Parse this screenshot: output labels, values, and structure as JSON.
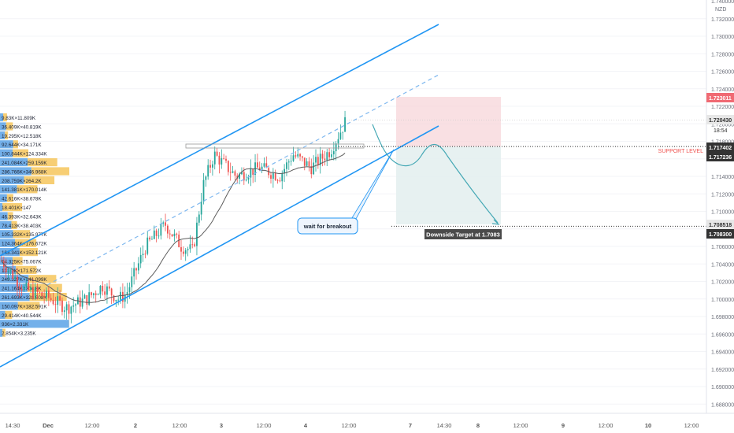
{
  "chart_data": {
    "type": "candlestick",
    "currency_label": "NZD",
    "y_ticks": [
      "1.740000",
      "1.732000",
      "1.730000",
      "1.728000",
      "1.726000",
      "1.724000",
      "1.722000",
      "1.720000",
      "1.718000",
      "1.716000",
      "1.714000",
      "1.712000",
      "1.710000",
      "1.708000",
      "1.706000",
      "1.704000",
      "1.702000",
      "1.700000",
      "1.698000",
      "1.696000",
      "1.694000",
      "1.692000",
      "1.690000",
      "1.688000"
    ],
    "x_ticks": [
      "14:30",
      "Dec",
      "12:00",
      "2",
      "12:00",
      "3",
      "12:00",
      "4",
      "12:00",
      "7",
      "14:30",
      "8",
      "12:00",
      "9",
      "12:00",
      "10",
      "12:00"
    ],
    "price_labels": {
      "target_zone_top": "1.723011",
      "current_price": "1.720430",
      "countdown": "18:54",
      "support_1": "1.717402",
      "support_2": "1.717236",
      "target_1": "1.708518",
      "target_2": "1.708300"
    },
    "annotations": {
      "support_level": "SUPPORT LEVEL",
      "wait_callout": "wait for breakout",
      "downside_target": "Downside Target at 1.7083"
    },
    "volume_profile": [
      "9.83K×11.809K",
      "36.409K×40.819K",
      "19.295K×12.518K",
      "92.644K×34.171K",
      "100.844K×124.334K",
      "241.084K×259.159K",
      "286.766K×346.968K",
      "208.759K×264.2K",
      "141.381K×170.014K",
      "42.616K×38.678K",
      "18.401K×147",
      "46.393K×32.643K",
      "78.413K×38.403K",
      "105.332K×135.977K",
      "124.364K×176.672K",
      "163.341K×152.121K",
      "94.325K×75.067K",
      "131.3K×171.572K",
      "249.327K×241.099K",
      "241.164K×304.8K",
      "261.693K×328.608K",
      "150.097K×182.591K",
      "29.414K×40.544K",
      "936×2.331K",
      "2.854K×3.235K"
    ],
    "colors": {
      "up": "#26a69a",
      "down": "#ef5350",
      "channel": "#2196f3",
      "stop_zone": "#f7d6d9",
      "target_zone": "#e4eff0",
      "support_label": "#ef5350",
      "target_label_bg": "#4a4a4a",
      "ma": "#5d5d5d"
    }
  }
}
